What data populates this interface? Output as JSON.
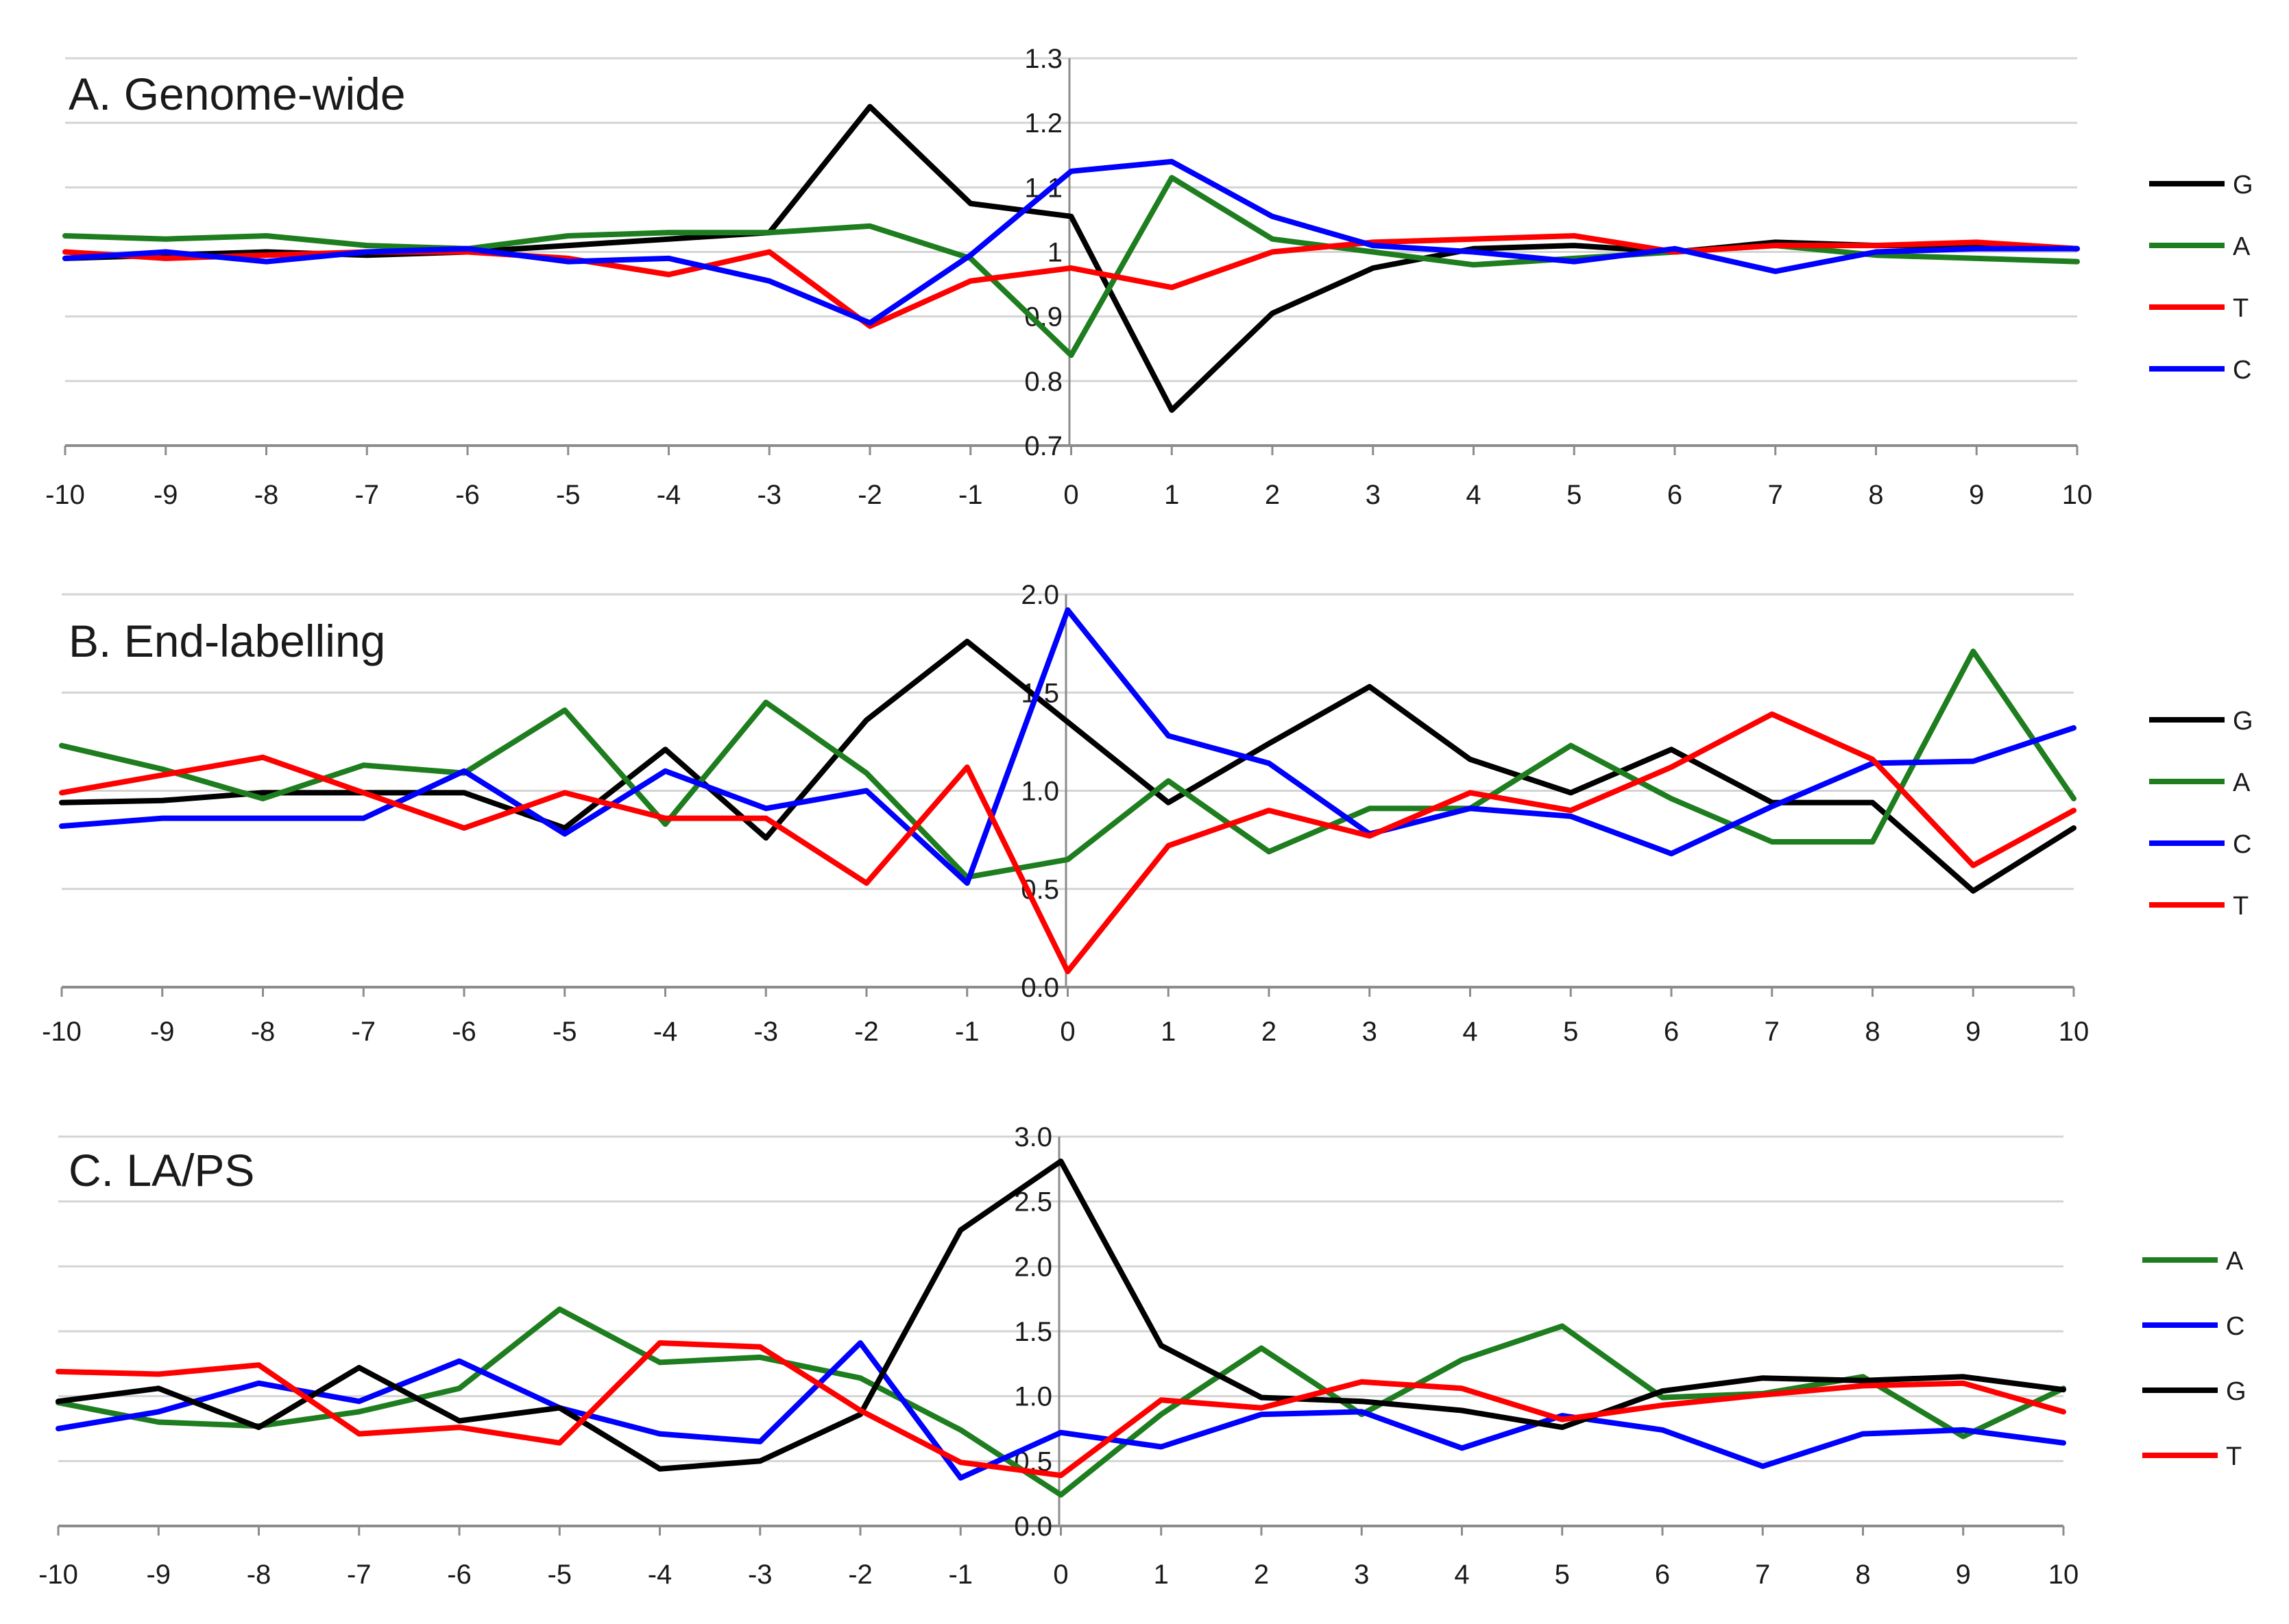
{
  "chart_data": [
    {
      "type": "line",
      "title": "A. Genome-wide",
      "x": [
        -10,
        -9,
        -8,
        -7,
        -6,
        -5,
        -4,
        -3,
        -2,
        -1,
        0,
        1,
        2,
        3,
        4,
        5,
        6,
        7,
        8,
        9,
        10
      ],
      "x_tick_labels": [
        "-10",
        "-9",
        "-8",
        "-7",
        "-6",
        "-5",
        "-4",
        "-3",
        "-2",
        "-1",
        "0",
        "1",
        "2",
        "3",
        "4",
        "5",
        "6",
        "7",
        "8",
        "9",
        "10"
      ],
      "ylim": [
        0.7,
        1.3
      ],
      "y_ticks": [
        0.7,
        0.8,
        0.9,
        1.0,
        1.1,
        1.2,
        1.3
      ],
      "y_tick_labels": [
        "0.7",
        "0.8",
        "0.9",
        "1",
        "1.1",
        "1.2",
        "1.3"
      ],
      "grid": true,
      "legend_position": "right",
      "series": [
        {
          "name": "G",
          "color": "#000000",
          "values": [
            0.99,
            0.995,
            1.0,
            0.995,
            1.0,
            1.01,
            1.02,
            1.03,
            1.225,
            1.075,
            1.055,
            0.755,
            0.905,
            0.975,
            1.005,
            1.01,
            1.0,
            1.015,
            1.01,
            1.01,
            1.005
          ]
        },
        {
          "name": "A",
          "color": "#1e7d1e",
          "values": [
            1.025,
            1.02,
            1.025,
            1.01,
            1.005,
            1.025,
            1.03,
            1.03,
            1.04,
            0.99,
            0.84,
            1.115,
            1.02,
            1.0,
            0.98,
            0.99,
            1.0,
            1.01,
            0.995,
            0.99,
            0.985
          ]
        },
        {
          "name": "T",
          "color": "#ff0000",
          "values": [
            1.0,
            0.99,
            0.995,
            1.0,
            1.0,
            0.99,
            0.965,
            1.0,
            0.885,
            0.955,
            0.975,
            0.945,
            1.0,
            1.015,
            1.02,
            1.025,
            1.0,
            1.01,
            1.01,
            1.015,
            1.005
          ]
        },
        {
          "name": "C",
          "color": "#0000ff",
          "values": [
            0.99,
            1.0,
            0.985,
            1.0,
            1.005,
            0.985,
            0.99,
            0.955,
            0.89,
            0.995,
            1.125,
            1.14,
            1.055,
            1.01,
            1.0,
            0.985,
            1.005,
            0.97,
            1.0,
            1.005,
            1.005
          ]
        }
      ]
    },
    {
      "type": "line",
      "title": "B. End-labelling",
      "x": [
        -10,
        -9,
        -8,
        -7,
        -6,
        -5,
        -4,
        -3,
        -2,
        -1,
        0,
        1,
        2,
        3,
        4,
        5,
        6,
        7,
        8,
        9,
        10
      ],
      "x_tick_labels": [
        "-10",
        "-9",
        "-8",
        "-7",
        "-6",
        "-5",
        "-4",
        "-3",
        "-2",
        "-1",
        "0",
        "1",
        "2",
        "3",
        "4",
        "5",
        "6",
        "7",
        "8",
        "9",
        "10"
      ],
      "ylim": [
        0.0,
        2.0
      ],
      "y_ticks": [
        0.0,
        0.5,
        1.0,
        1.5,
        2.0
      ],
      "y_tick_labels": [
        "0.0",
        "0.5",
        "1.0",
        "1.5",
        "2.0"
      ],
      "grid": true,
      "legend_position": "right",
      "series": [
        {
          "name": "G",
          "color": "#000000",
          "values": [
            0.94,
            0.95,
            0.99,
            0.99,
            0.99,
            0.81,
            1.21,
            0.76,
            1.36,
            1.76,
            1.35,
            0.94,
            1.24,
            1.53,
            1.16,
            0.99,
            1.21,
            0.94,
            0.94,
            0.49,
            0.81
          ]
        },
        {
          "name": "A",
          "color": "#1e7d1e",
          "values": [
            1.23,
            1.11,
            0.96,
            1.13,
            1.09,
            1.41,
            0.83,
            1.45,
            1.09,
            0.56,
            0.65,
            1.05,
            0.69,
            0.91,
            0.91,
            1.23,
            0.96,
            0.74,
            0.74,
            1.71,
            0.96
          ]
        },
        {
          "name": "C",
          "color": "#0000ff",
          "values": [
            0.82,
            0.86,
            0.86,
            0.86,
            1.1,
            0.78,
            1.1,
            0.91,
            1.0,
            0.53,
            1.92,
            1.28,
            1.14,
            0.78,
            0.91,
            0.87,
            0.68,
            0.92,
            1.14,
            1.15,
            1.32
          ]
        },
        {
          "name": "T",
          "color": "#ff0000",
          "values": [
            0.99,
            1.08,
            1.17,
            0.99,
            0.81,
            0.99,
            0.86,
            0.86,
            0.53,
            1.12,
            0.08,
            0.72,
            0.9,
            0.77,
            0.99,
            0.9,
            1.12,
            1.39,
            1.16,
            0.62,
            0.9
          ]
        }
      ]
    },
    {
      "type": "line",
      "title": "C. LA/PS",
      "x": [
        -10,
        -9,
        -8,
        -7,
        -6,
        -5,
        -4,
        -3,
        -2,
        -1,
        0,
        1,
        2,
        3,
        4,
        5,
        6,
        7,
        8,
        9,
        10
      ],
      "x_tick_labels": [
        "-10",
        "-9",
        "-8",
        "-7",
        "-6",
        "-5",
        "-4",
        "-3",
        "-2",
        "-1",
        "0",
        "1",
        "2",
        "3",
        "4",
        "5",
        "6",
        "7",
        "8",
        "9",
        "10"
      ],
      "ylim": [
        0.0,
        3.0
      ],
      "y_ticks": [
        0.0,
        0.5,
        1.0,
        1.5,
        2.0,
        2.5,
        3.0
      ],
      "y_tick_labels": [
        "0.0",
        "0.5",
        "1.0",
        "1.5",
        "2.0",
        "2.5",
        "3.0"
      ],
      "grid": true,
      "legend_position": "right",
      "series": [
        {
          "name": "A",
          "color": "#1e7d1e",
          "values": [
            0.95,
            0.8,
            0.77,
            0.88,
            1.06,
            1.67,
            1.26,
            1.3,
            1.14,
            0.74,
            0.24,
            0.86,
            1.37,
            0.86,
            1.28,
            1.54,
            0.99,
            1.02,
            1.15,
            0.69,
            1.06
          ]
        },
        {
          "name": "C",
          "color": "#0000ff",
          "values": [
            0.75,
            0.88,
            1.1,
            0.96,
            1.27,
            0.91,
            0.71,
            0.65,
            1.41,
            0.37,
            0.72,
            0.61,
            0.86,
            0.88,
            0.6,
            0.85,
            0.74,
            0.46,
            0.71,
            0.74,
            0.64
          ]
        },
        {
          "name": "G",
          "color": "#000000",
          "values": [
            0.96,
            1.06,
            0.76,
            1.22,
            0.81,
            0.91,
            0.44,
            0.5,
            0.86,
            2.28,
            2.81,
            1.39,
            0.99,
            0.96,
            0.89,
            0.76,
            1.04,
            1.14,
            1.12,
            1.15,
            1.05
          ]
        },
        {
          "name": "T",
          "color": "#ff0000",
          "values": [
            1.19,
            1.17,
            1.24,
            0.71,
            0.76,
            0.64,
            1.41,
            1.38,
            0.89,
            0.49,
            0.39,
            0.97,
            0.91,
            1.11,
            1.06,
            0.82,
            0.93,
            1.01,
            1.08,
            1.1,
            0.88
          ]
        }
      ]
    }
  ]
}
